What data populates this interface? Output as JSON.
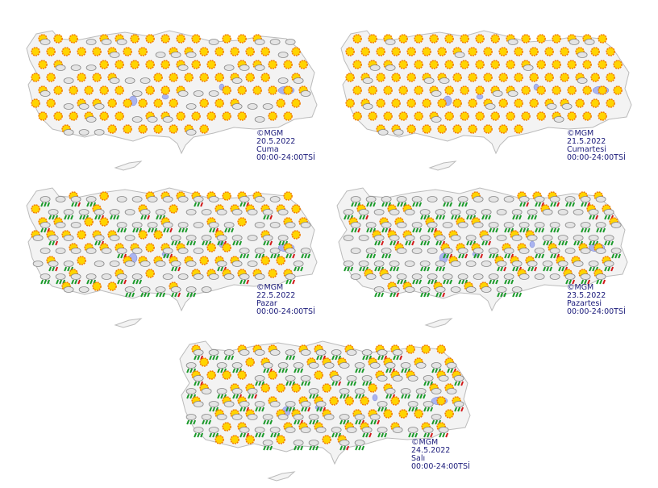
{
  "maps": [
    {
      "credit": "©MGM",
      "date": "20.5.2022",
      "day": "Cuma",
      "period": "00:00-24:00TSİ"
    },
    {
      "credit": "©MGM",
      "date": "21.5.2022",
      "day": "Cumartesi",
      "period": "00:00-24:00TSİ"
    },
    {
      "credit": "©MGM",
      "date": "22.5.2022",
      "day": "Pazar",
      "period": "00:00-24:00TSİ"
    },
    {
      "credit": "©MGM",
      "date": "23.5.2022",
      "day": "Pazartesi",
      "period": "00:00-24:00TSİ"
    },
    {
      "credit": "©MGM",
      "date": "24.5.2022",
      "day": "Salı",
      "period": "00:00-24:00TSİ"
    }
  ]
}
